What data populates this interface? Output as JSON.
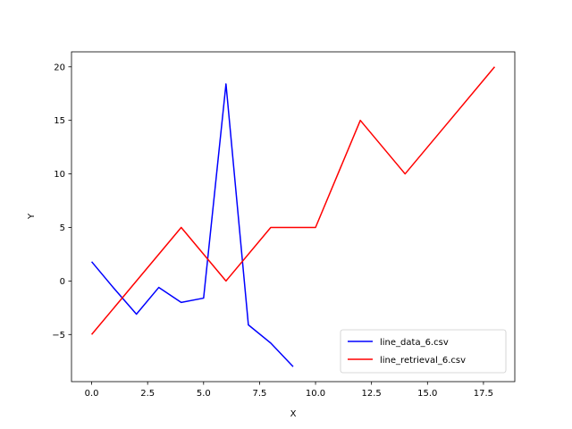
{
  "chart_data": {
    "type": "line",
    "title": "",
    "xlabel": "X",
    "ylabel": "Y",
    "xlim": [
      -0.9,
      18.9
    ],
    "ylim": [
      -9.4,
      21.4
    ],
    "xticks": [
      0.0,
      2.5,
      5.0,
      7.5,
      10.0,
      12.5,
      15.0,
      17.5
    ],
    "xtick_labels": [
      "0.0",
      "2.5",
      "5.0",
      "7.5",
      "10.0",
      "12.5",
      "15.0",
      "17.5"
    ],
    "yticks": [
      -5,
      0,
      5,
      10,
      15,
      20
    ],
    "ytick_labels": [
      "−5",
      "0",
      "5",
      "10",
      "15",
      "20"
    ],
    "grid": false,
    "legend_position": "lower-right",
    "series": [
      {
        "name": "line_data_6.csv",
        "color": "#0000ff",
        "x": [
          0,
          1,
          2,
          3,
          4,
          5,
          6,
          7,
          8,
          9
        ],
        "y": [
          1.8,
          -0.7,
          -3.1,
          -0.6,
          -2.0,
          -1.6,
          18.4,
          -4.1,
          -5.8,
          -8.0
        ]
      },
      {
        "name": "line_retrieval_6.csv",
        "color": "#ff0000",
        "x": [
          0,
          2,
          4,
          6,
          8,
          10,
          12,
          14,
          16,
          18
        ],
        "y": [
          -5,
          0,
          5,
          0,
          5,
          5,
          15,
          10,
          15,
          20
        ]
      }
    ]
  }
}
